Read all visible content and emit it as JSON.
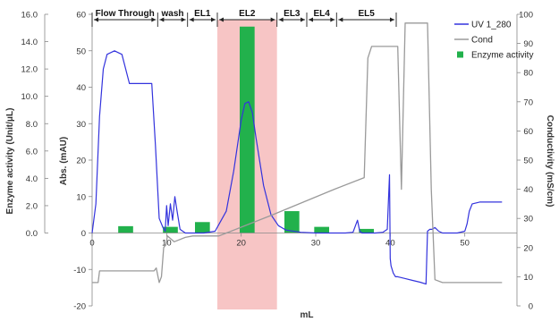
{
  "chart_data": {
    "type": "line",
    "xlabel": "mL",
    "ylabel_left_outer": "Enzyme activity (Unit/μL)",
    "ylabel_left_inner": "Abs. (mAU)",
    "ylabel_right": "Conductivity (mS/cm)",
    "xlim": [
      0,
      57
    ],
    "x_ticks": [
      "0",
      "10",
      "20",
      "30",
      "40",
      "50"
    ],
    "y_mau_lim": [
      -20,
      60
    ],
    "y_mau_ticks": [
      "-20",
      "-10",
      "0",
      "10",
      "20",
      "30",
      "40",
      "50",
      "60"
    ],
    "y_enzyme_lim": [
      0,
      16
    ],
    "y_enzyme_ticks": [
      "0.0",
      "2.0",
      "4.0",
      "6.0",
      "8.0",
      "10.0",
      "12.0",
      "14.0",
      "16.0"
    ],
    "y_cond_lim": [
      0,
      100
    ],
    "y_cond_ticks": [
      "0",
      "10",
      "20",
      "30",
      "40",
      "50",
      "60",
      "70",
      "80",
      "90",
      "100"
    ],
    "highlight_region": [
      16.8,
      24.8
    ],
    "fractions": [
      {
        "label": "Flow Through",
        "start": 0,
        "end": 8.8
      },
      {
        "label": "wash",
        "start": 8.8,
        "end": 12.8
      },
      {
        "label": "EL1",
        "start": 12.8,
        "end": 16.8
      },
      {
        "label": "EL2",
        "start": 16.8,
        "end": 24.8
      },
      {
        "label": "EL3",
        "start": 24.8,
        "end": 28.8
      },
      {
        "label": "EL4",
        "start": 28.8,
        "end": 32.8
      },
      {
        "label": "EL5",
        "start": 32.8,
        "end": 40.8
      }
    ],
    "series": [
      {
        "name": "UV 1_280",
        "axis": "mAU",
        "x": [
          0,
          0.5,
          1,
          1.5,
          2,
          3,
          4,
          5,
          6,
          7,
          8,
          8.5,
          9,
          9.5,
          9.8,
          10,
          10.2,
          10.5,
          10.8,
          11.1,
          11.4,
          11.8,
          12.5,
          13.5,
          15,
          16.5,
          18,
          19,
          20,
          20.5,
          21,
          21.5,
          22,
          23,
          24,
          25,
          26,
          28,
          30,
          32,
          34,
          35,
          35.6,
          35.9,
          36.2,
          36.6,
          37,
          38,
          39,
          39.6,
          39.9,
          40,
          40.1,
          40.4,
          40.7,
          41,
          42,
          43,
          44,
          44.8,
          45,
          45.3,
          45.6,
          46,
          46.5,
          47,
          48,
          49,
          50,
          50.3,
          50.6,
          51,
          52,
          53,
          54,
          55
        ],
        "values": [
          0,
          8,
          32,
          45,
          49,
          50,
          49,
          41,
          41,
          41,
          41,
          24,
          4,
          1.5,
          0.5,
          7.5,
          2,
          8,
          3.5,
          10,
          6,
          1,
          0,
          0,
          0,
          0.5,
          6,
          17,
          31,
          35.5,
          36,
          33,
          26,
          13,
          5,
          2,
          0.8,
          0.2,
          0,
          0,
          0,
          0.2,
          3.5,
          0.5,
          0,
          0,
          0,
          0,
          0.2,
          1,
          16,
          -7,
          -9,
          -11,
          -12,
          -12,
          -12.5,
          -13,
          -13.5,
          -14,
          0.5,
          1,
          1,
          1.5,
          0.5,
          0,
          0,
          0,
          0.5,
          2.5,
          6,
          8,
          8.5,
          8.5,
          8.5,
          8.5
        ]
      },
      {
        "name": "Cond",
        "axis": "cond",
        "x": [
          0,
          0.8,
          1,
          8.3,
          8.6,
          9,
          9.3,
          9.6,
          9.9,
          10.1,
          11,
          12.5,
          13.5,
          16.8,
          17,
          24,
          32.5,
          36.5,
          37,
          37.5,
          38,
          40,
          41,
          41.5,
          42,
          43,
          44,
          45,
          45.5,
          46,
          47,
          50,
          55
        ],
        "values": [
          8,
          8,
          12,
          12,
          13,
          8,
          10,
          20,
          21,
          24,
          22,
          23.5,
          24,
          24,
          24,
          31,
          40,
          44,
          85,
          89,
          89,
          89,
          89,
          40,
          97,
          97,
          97,
          97,
          40,
          9,
          8,
          8,
          8
        ]
      }
    ],
    "bars": {
      "name": "Enzyme activity",
      "axis": "enzyme",
      "x_centers": [
        4.5,
        10.5,
        14.8,
        20.8,
        26.8,
        30.8,
        36.8
      ],
      "width": 2.0,
      "values": [
        0.5,
        0.45,
        0.8,
        15.1,
        1.6,
        0.45,
        0.3
      ]
    }
  },
  "legend": {
    "items": [
      {
        "label": "UV 1_280",
        "type": "line",
        "color": "#3333dd"
      },
      {
        "label": "Cond",
        "type": "line",
        "color": "#9a9a9a"
      },
      {
        "label": "Enzyme activity",
        "type": "box",
        "color": "#22b14c"
      }
    ]
  },
  "colors": {
    "uv": "#3333dd",
    "cond": "#9a9a9a",
    "bar": "#22b14c",
    "highlight": "#f7c5c5",
    "axis": "#888888"
  }
}
